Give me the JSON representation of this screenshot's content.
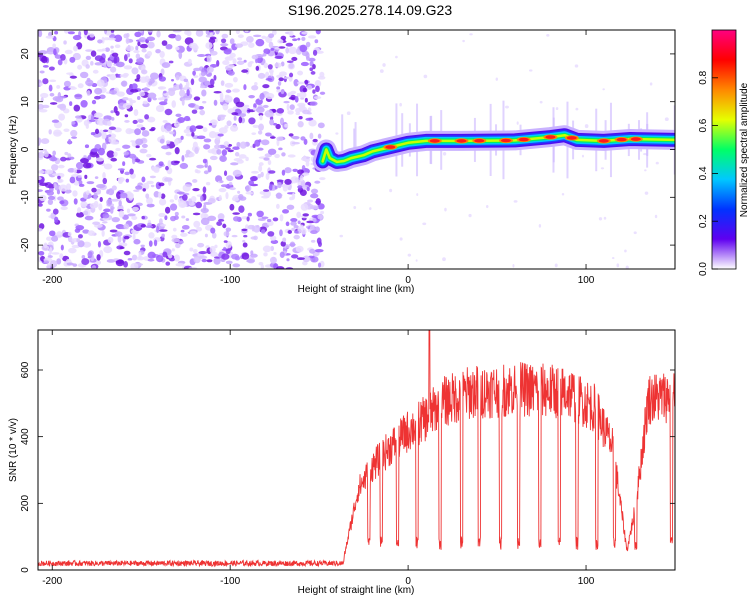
{
  "title": "S196.2025.278.14.09.G23",
  "chart_data": [
    {
      "type": "heatmap",
      "xlabel": "Height of straight line (km)",
      "ylabel": "Frequency (Hz)",
      "xlim": [
        -208,
        150
      ],
      "ylim": [
        -25,
        25
      ],
      "xticks": [
        -200,
        -100,
        0,
        100
      ],
      "yticks": [
        -20,
        -10,
        0,
        10,
        20
      ],
      "noise_region_x": [
        -208,
        -48
      ],
      "signal_track": [
        {
          "x": -48,
          "y": -2.5
        },
        {
          "x": -46,
          "y": 0.0
        },
        {
          "x": -44,
          "y": -1.8
        },
        {
          "x": -40,
          "y": -2.6
        },
        {
          "x": -36,
          "y": -2.4
        },
        {
          "x": -32,
          "y": -1.8
        },
        {
          "x": -25,
          "y": -1.2
        },
        {
          "x": -20,
          "y": -0.4
        },
        {
          "x": -10,
          "y": 0.5
        },
        {
          "x": 0,
          "y": 1.4
        },
        {
          "x": 10,
          "y": 1.8
        },
        {
          "x": 30,
          "y": 1.8
        },
        {
          "x": 60,
          "y": 1.9
        },
        {
          "x": 80,
          "y": 2.6
        },
        {
          "x": 88,
          "y": 3.0
        },
        {
          "x": 95,
          "y": 2.0
        },
        {
          "x": 110,
          "y": 1.8
        },
        {
          "x": 125,
          "y": 2.2
        },
        {
          "x": 150,
          "y": 2.0
        }
      ],
      "peak_x": [
        -10,
        15,
        30,
        40,
        55,
        65,
        80,
        92,
        110,
        120,
        128
      ]
    },
    {
      "type": "line",
      "xlabel": "Height of straight line (km)",
      "ylabel": "SNR (10 * v/v)",
      "xlim": [
        -208,
        150
      ],
      "ylim": [
        0,
        720
      ],
      "xticks": [
        -200,
        -100,
        0,
        100
      ],
      "yticks": [
        0,
        200,
        400,
        600
      ],
      "color": "#ee3333",
      "noise_floor": {
        "x_range": [
          -208,
          -36
        ],
        "mean": 20,
        "spread": 8
      },
      "envelope": [
        {
          "x": -36,
          "y": 40
        },
        {
          "x": -28,
          "y": 250
        },
        {
          "x": -20,
          "y": 320
        },
        {
          "x": -10,
          "y": 380
        },
        {
          "x": 0,
          "y": 430
        },
        {
          "x": 10,
          "y": 470
        },
        {
          "x": 20,
          "y": 520
        },
        {
          "x": 35,
          "y": 550
        },
        {
          "x": 60,
          "y": 560
        },
        {
          "x": 90,
          "y": 550
        },
        {
          "x": 105,
          "y": 500
        },
        {
          "x": 115,
          "y": 380
        },
        {
          "x": 123,
          "y": 60
        },
        {
          "x": 128,
          "y": 200
        },
        {
          "x": 135,
          "y": 530
        },
        {
          "x": 150,
          "y": 540
        }
      ],
      "dropouts_x": [
        -22,
        -15,
        -6,
        5,
        18,
        30,
        40,
        52,
        62,
        74,
        85,
        95,
        106,
        116,
        128,
        148
      ],
      "spike": {
        "x": 12,
        "y": 720
      }
    }
  ],
  "colorbar": {
    "label": "Normalized spectral amplitude",
    "ticks": [
      0.0,
      0.2,
      0.4,
      0.6,
      0.8
    ],
    "range": [
      0,
      1
    ],
    "stops": [
      "#ffffff",
      "#5f00f0",
      "#0033ff",
      "#00c8ff",
      "#00ff66",
      "#e6ff00",
      "#ff8800",
      "#ff0000",
      "#ff0080"
    ]
  }
}
